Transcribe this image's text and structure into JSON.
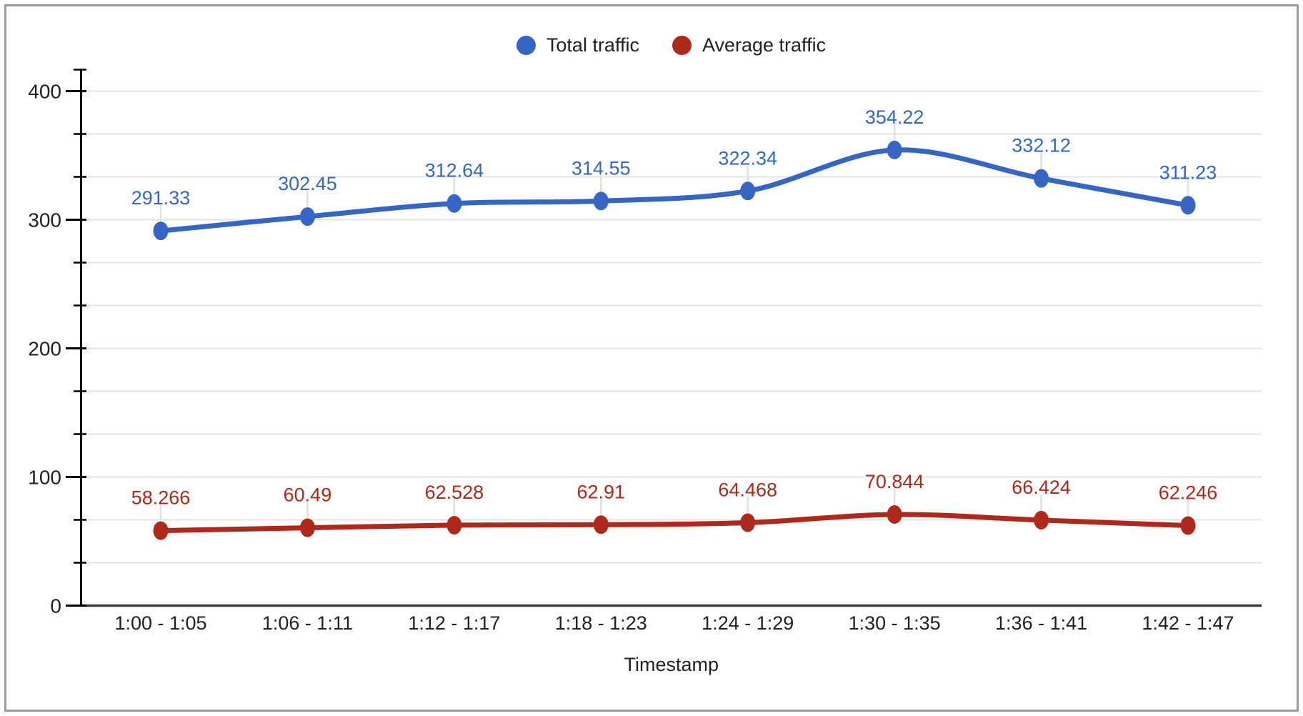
{
  "page": {
    "background": "#ffffff",
    "border_color": "#9a9a9a"
  },
  "chart_data": {
    "type": "line",
    "title": "",
    "xlabel": "Timestamp",
    "ylabel": "",
    "legend_position": "top",
    "grid": true,
    "smooth_lines": true,
    "point_labels_visible": true,
    "categories": [
      "1:00 - 1:05",
      "1:06 - 1:11",
      "1:12 - 1:17",
      "1:18 - 1:23",
      "1:24 - 1:29",
      "1:30 - 1:35",
      "1:36 - 1:41",
      "1:42 - 1:47"
    ],
    "series": [
      {
        "name": "Total traffic",
        "color": "#3566c4",
        "values": [
          291.33,
          302.45,
          312.64,
          314.55,
          322.34,
          354.22,
          332.12,
          311.23
        ],
        "labels": [
          "291.33",
          "302.45",
          "312.64",
          "314.55",
          "322.34",
          "354.22",
          "332.12",
          "311.23"
        ]
      },
      {
        "name": "Average traffic",
        "color": "#ae281c",
        "values": [
          58.266,
          60.49,
          62.528,
          62.91,
          64.468,
          70.844,
          66.424,
          62.246
        ],
        "labels": [
          "58.266",
          "60.49",
          "62.528",
          "62.91",
          "64.468",
          "70.844",
          "66.424",
          "62.246"
        ]
      }
    ],
    "y_axis": {
      "min": 0,
      "max": 400,
      "major_step": 100,
      "minor_divisions_per_major": 3,
      "tick_labels": [
        "0",
        "100",
        "200",
        "300",
        "400"
      ]
    },
    "colors": {
      "gridline": "#e4e4e4",
      "axis_line": "#000000",
      "baseline": "#3c3c3c",
      "tick_text": "#212121",
      "leader_line": "#e0e0e0"
    }
  }
}
